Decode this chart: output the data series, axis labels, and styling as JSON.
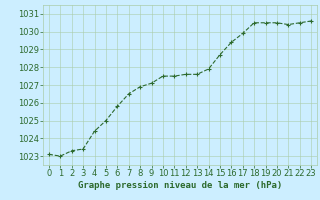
{
  "x": [
    0,
    1,
    2,
    3,
    4,
    5,
    6,
    7,
    8,
    9,
    10,
    11,
    12,
    13,
    14,
    15,
    16,
    17,
    18,
    19,
    20,
    21,
    22,
    23
  ],
  "y": [
    1023.1,
    1023.0,
    1023.3,
    1023.4,
    1024.4,
    1025.0,
    1025.8,
    1026.5,
    1026.9,
    1027.1,
    1027.5,
    1027.5,
    1027.6,
    1027.6,
    1027.9,
    1028.7,
    1029.4,
    1029.9,
    1030.5,
    1030.5,
    1030.5,
    1030.4,
    1030.5,
    1030.6
  ],
  "ylim": [
    1022.5,
    1031.5
  ],
  "yticks": [
    1023,
    1024,
    1025,
    1026,
    1027,
    1028,
    1029,
    1030,
    1031
  ],
  "xticks": [
    0,
    1,
    2,
    3,
    4,
    5,
    6,
    7,
    8,
    9,
    10,
    11,
    12,
    13,
    14,
    15,
    16,
    17,
    18,
    19,
    20,
    21,
    22,
    23
  ],
  "line_color": "#2d6a2d",
  "marker_color": "#2d6a2d",
  "bg_color": "#cceeff",
  "grid_color": "#aaccaa",
  "xlabel": "Graphe pression niveau de la mer (hPa)",
  "xlabel_color": "#2d6a2d",
  "xlabel_fontsize": 6.5,
  "tick_fontsize": 6.0,
  "line_width": 0.8,
  "marker_size": 2.5
}
